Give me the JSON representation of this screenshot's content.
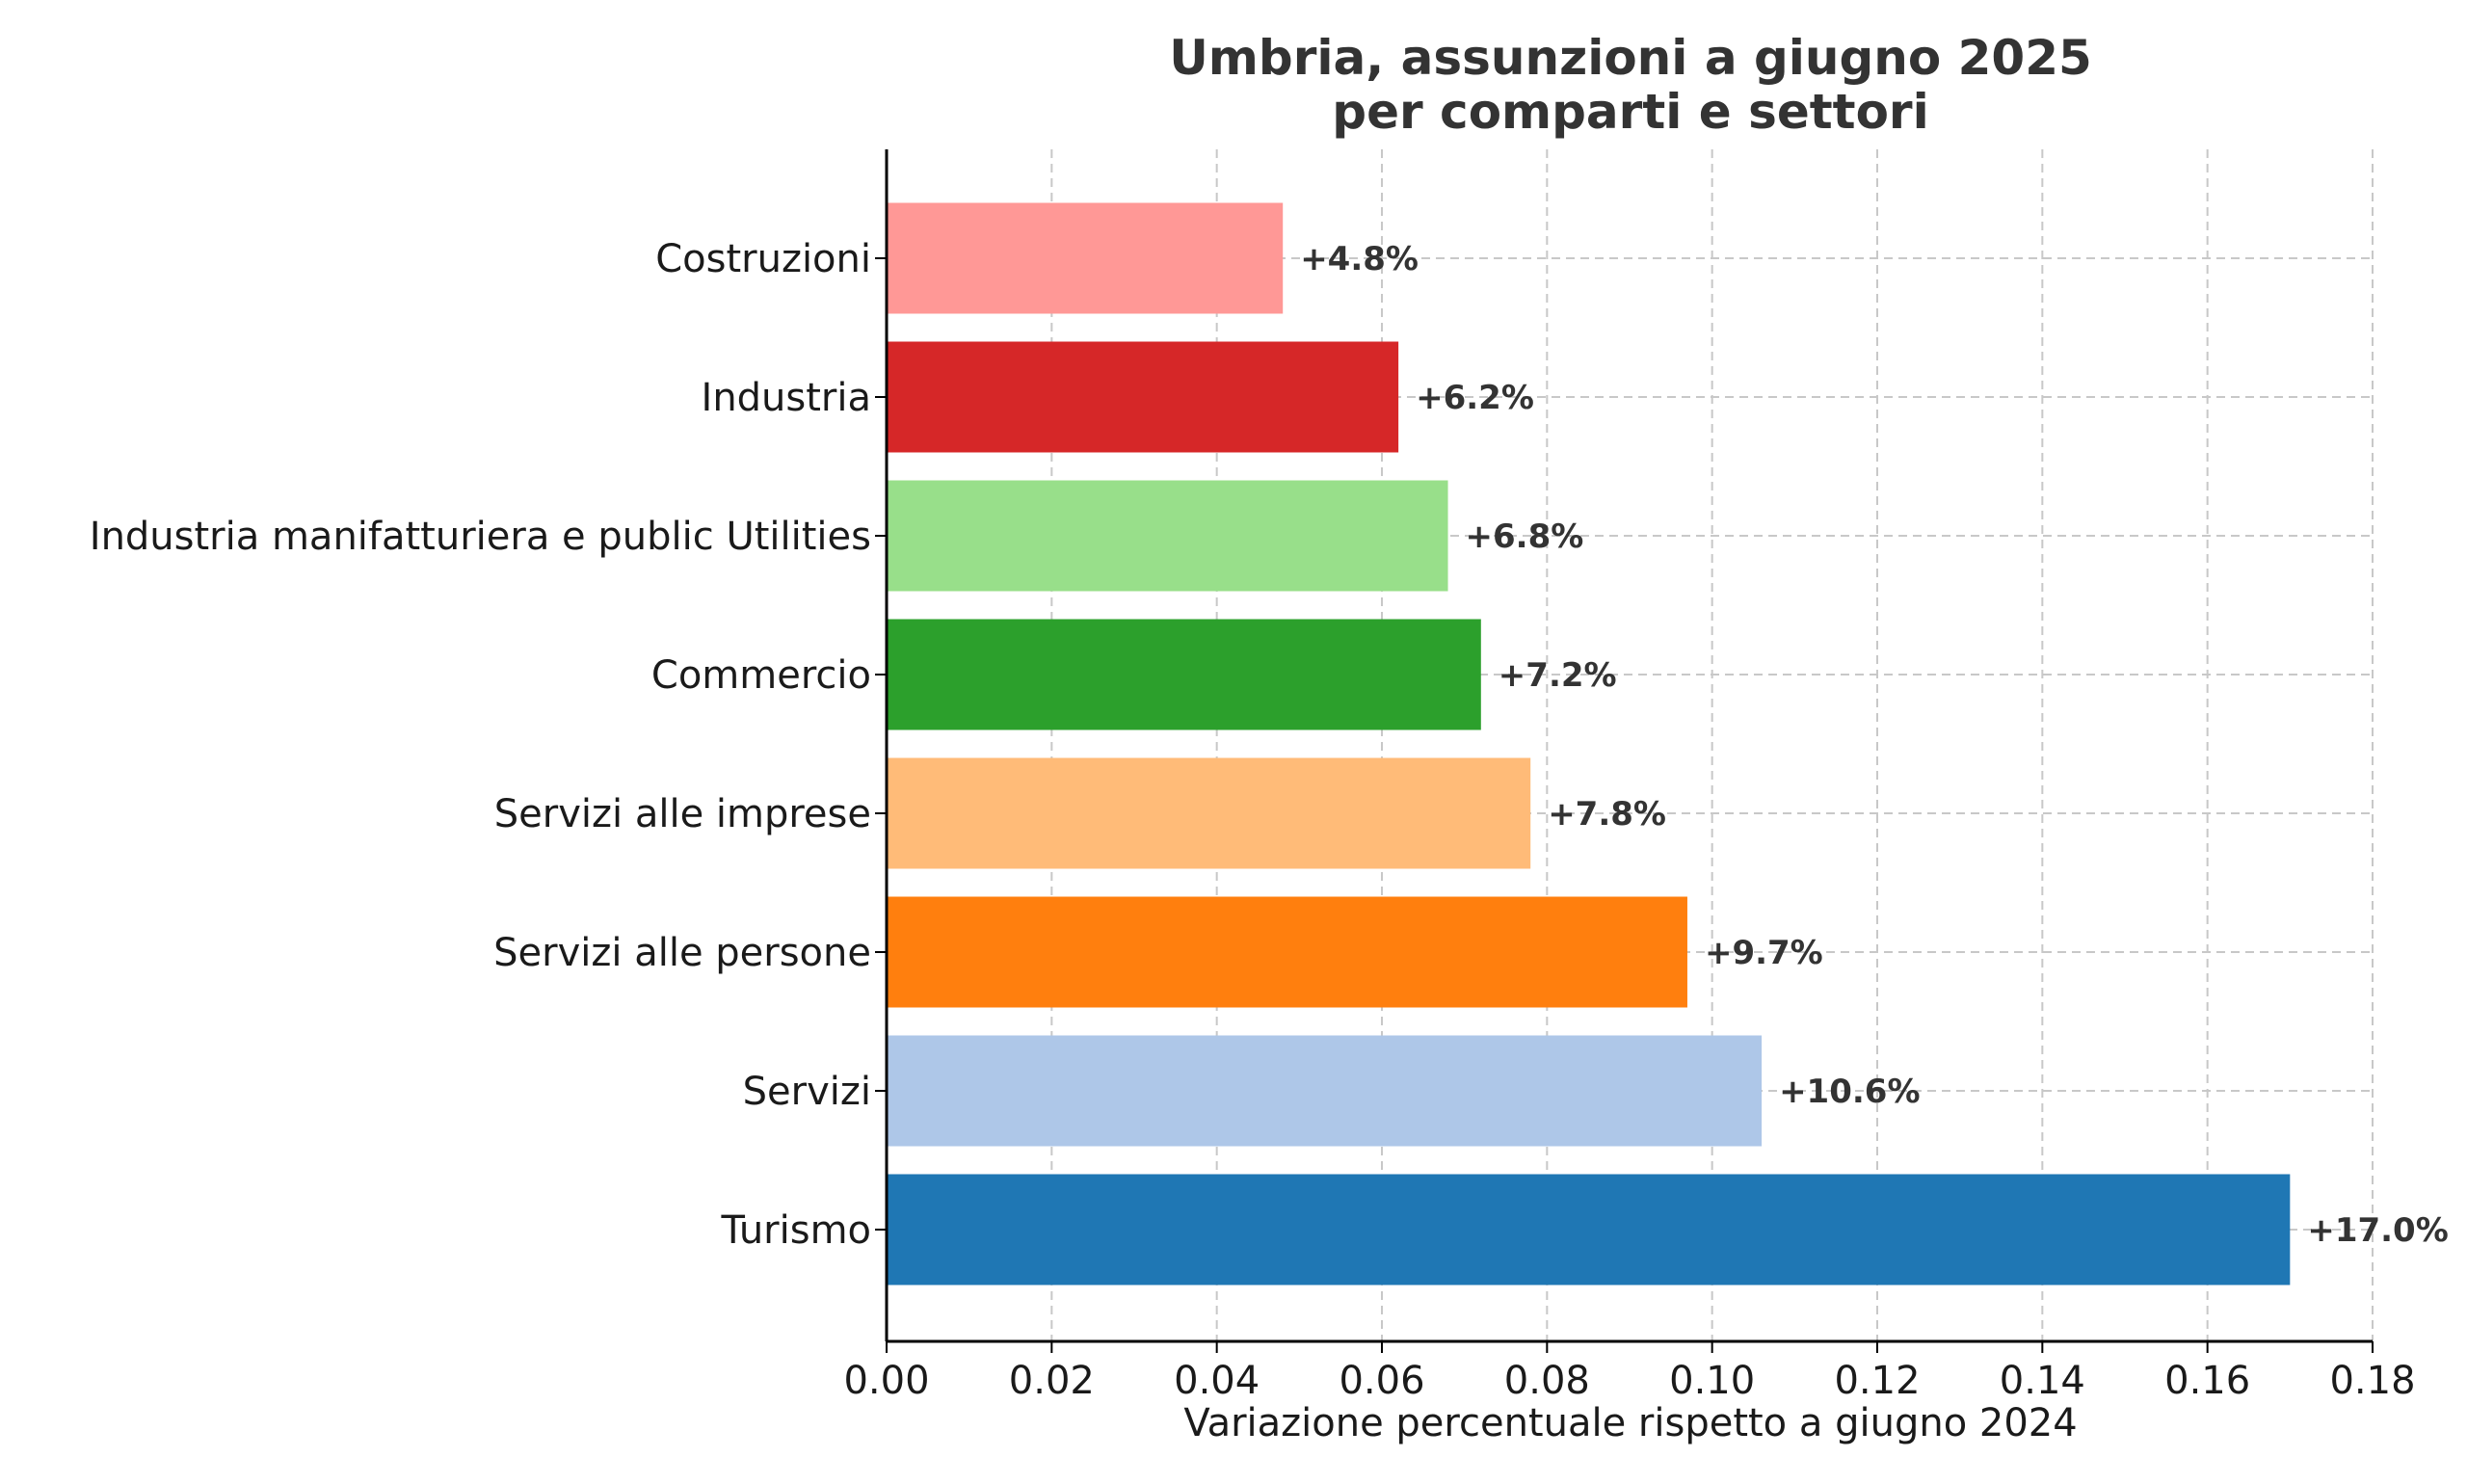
{
  "chart_data": {
    "type": "bar",
    "orientation": "horizontal",
    "title": [
      "Umbria, assunzioni a giugno 2025",
      "per comparti e settori"
    ],
    "xlabel": "Variazione percentuale rispetto a giugno 2024",
    "ylabel": "",
    "xlim": [
      0,
      0.18
    ],
    "xticks": [
      "0.00",
      "0.02",
      "0.04",
      "0.06",
      "0.08",
      "0.10",
      "0.12",
      "0.14",
      "0.16",
      "0.18"
    ],
    "grid": true,
    "categories": [
      "Costruzioni",
      "Industria",
      "Industria manifatturiera e public Utilities",
      "Commercio",
      "Servizi alle imprese",
      "Servizi alle persone",
      "Servizi",
      "Turismo"
    ],
    "values": [
      0.048,
      0.062,
      0.068,
      0.072,
      0.078,
      0.097,
      0.106,
      0.17
    ],
    "data_labels": [
      "+4.8%",
      "+6.2%",
      "+6.8%",
      "+7.2%",
      "+7.8%",
      "+9.7%",
      "+10.6%",
      "+17.0%"
    ],
    "colors": [
      "#ff9896",
      "#d62728",
      "#98df8a",
      "#2ca02c",
      "#ffbb78",
      "#ff7f0e",
      "#aec7e8",
      "#1f77b4"
    ]
  }
}
